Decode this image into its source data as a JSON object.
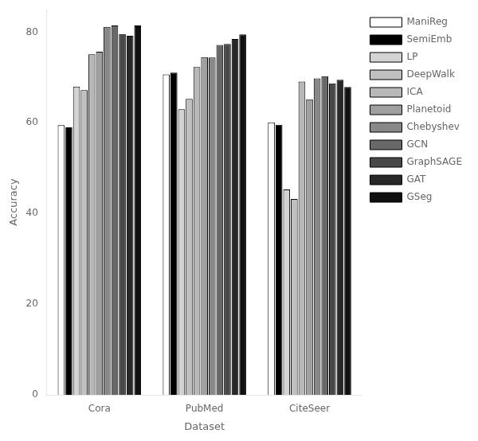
{
  "chart_data": {
    "type": "bar",
    "xlabel": "Dataset",
    "ylabel": "Accuracy",
    "categories": [
      "Cora",
      "PubMed",
      "CiteSeer"
    ],
    "series": [
      {
        "name": "ManiReg",
        "color": "#ffffff",
        "values": [
          59.5,
          70.7,
          60.1
        ]
      },
      {
        "name": "SemiEmb",
        "color": "#000000",
        "values": [
          59.0,
          71.1,
          59.6
        ]
      },
      {
        "name": "LP",
        "color": "#d3d3d3",
        "values": [
          68.0,
          63.0,
          45.3
        ]
      },
      {
        "name": "DeepWalk",
        "color": "#c0c0c0",
        "values": [
          67.2,
          65.3,
          43.2
        ]
      },
      {
        "name": "ICA",
        "color": "#b8b8b8",
        "values": [
          75.1,
          72.3,
          69.1
        ]
      },
      {
        "name": "Planetoid",
        "color": "#a0a0a0",
        "values": [
          75.7,
          74.5,
          65.2
        ]
      },
      {
        "name": "Chebyshev",
        "color": "#888888",
        "values": [
          81.2,
          74.4,
          69.8
        ]
      },
      {
        "name": "GCN",
        "color": "#686868",
        "values": [
          81.5,
          77.2,
          70.3
        ]
      },
      {
        "name": "GraphSAGE",
        "color": "#484848",
        "values": [
          79.6,
          77.4,
          68.7
        ]
      },
      {
        "name": "GAT",
        "color": "#282828",
        "values": [
          79.2,
          78.5,
          69.5
        ]
      },
      {
        "name": "GSeg",
        "color": "#101010",
        "values": [
          81.5,
          79.5,
          67.9
        ]
      }
    ],
    "ylim": [
      0,
      85
    ],
    "yticks": [
      0,
      20,
      40,
      60,
      80
    ],
    "grid": false,
    "legend": "right"
  }
}
